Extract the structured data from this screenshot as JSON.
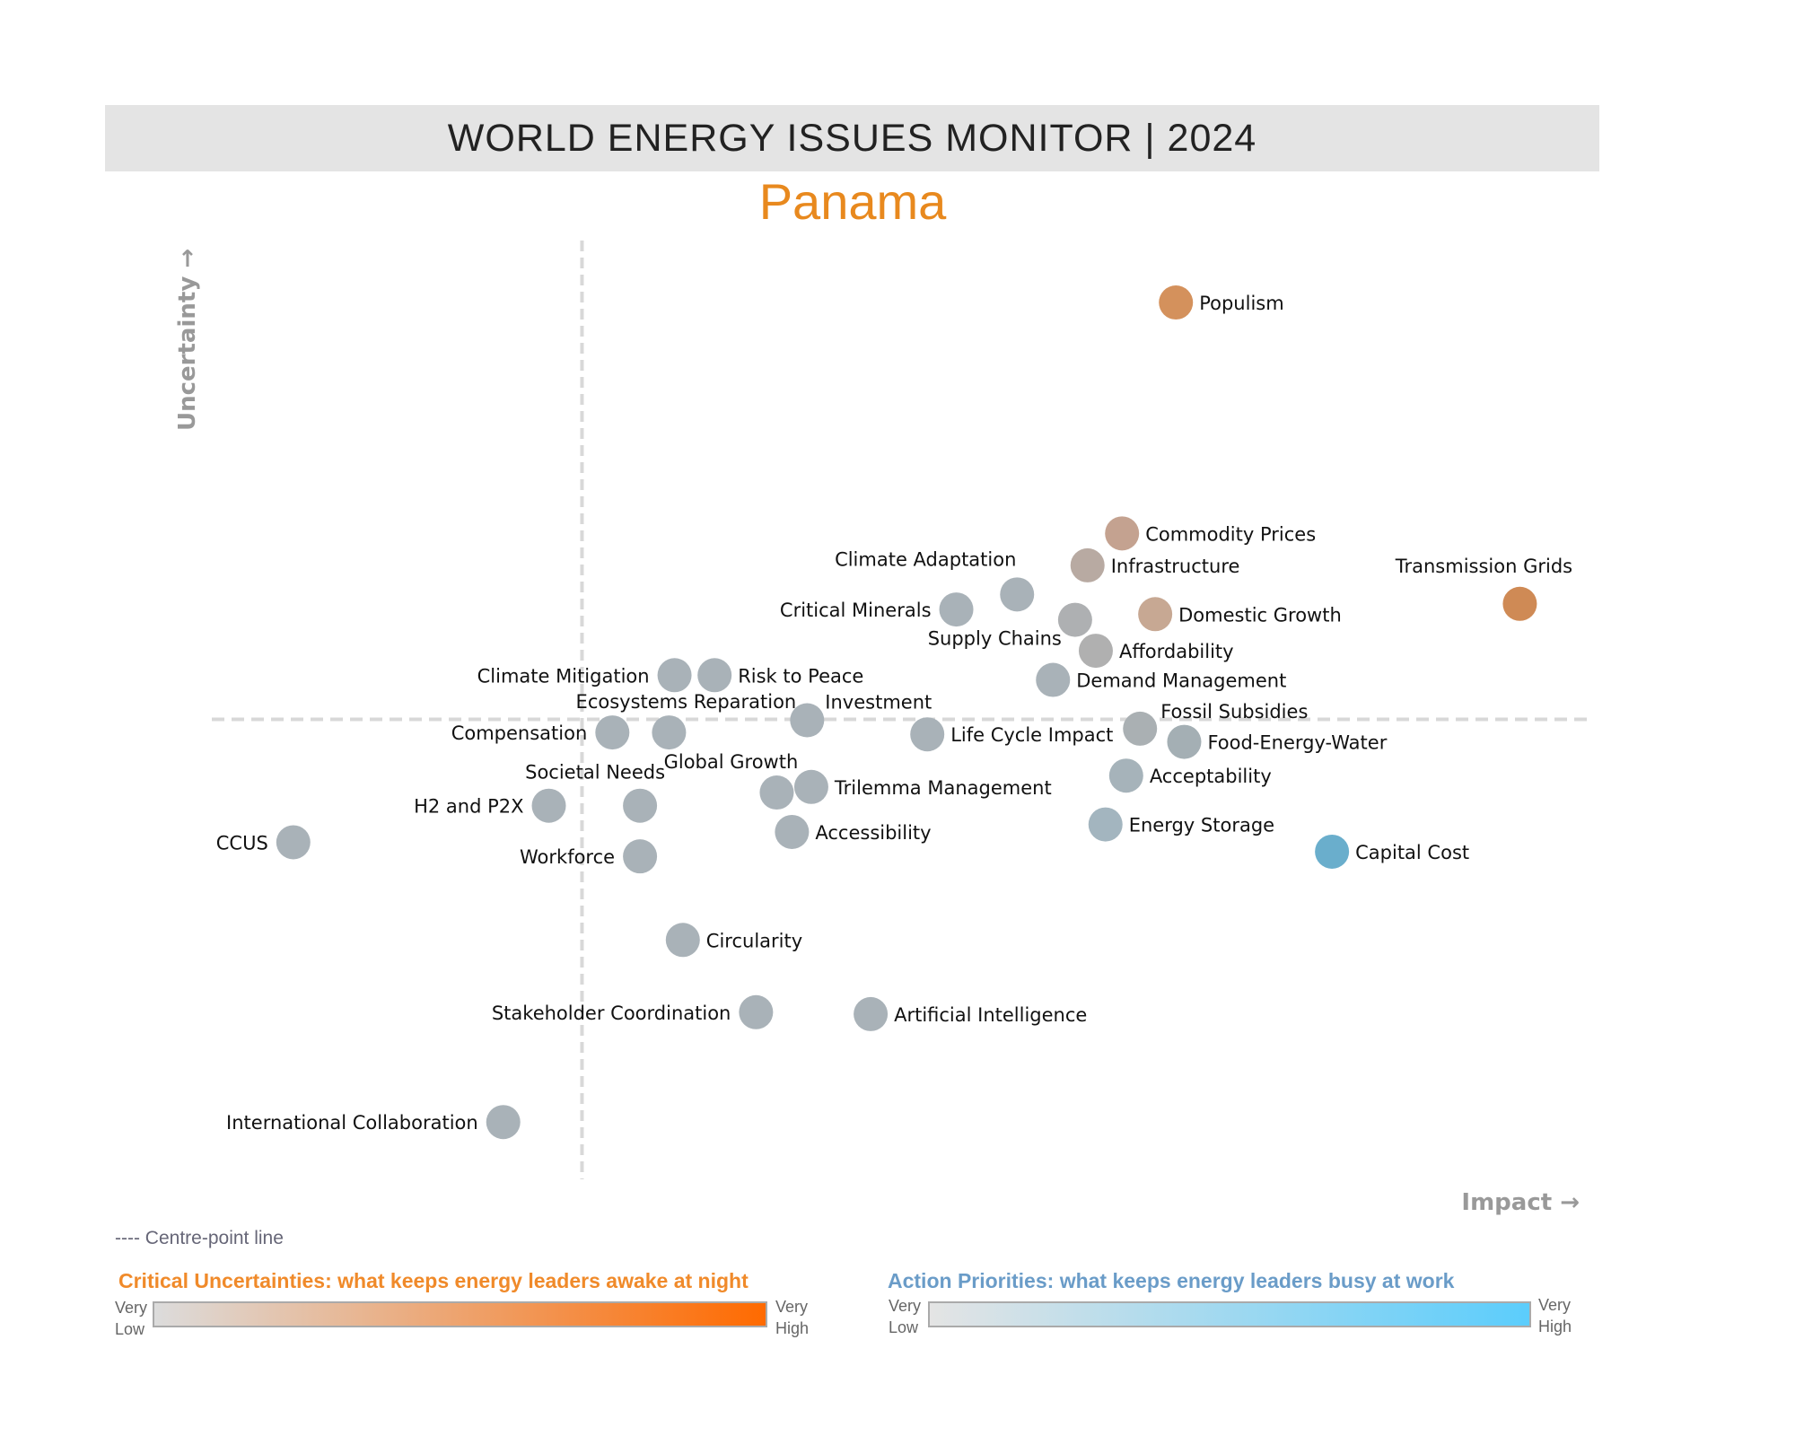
{
  "header": {
    "title": "WORLD ENERGY ISSUES MONITOR | 2024",
    "country": "Panama"
  },
  "chart_data": {
    "type": "scatter",
    "title": "WORLD ENERGY ISSUES MONITOR | 2024",
    "subtitle": "Panama",
    "xlabel": "Impact →",
    "ylabel": "Uncertainty →",
    "xlim": [
      0,
      10
    ],
    "ylim": [
      0,
      10
    ],
    "centre_point": {
      "impact": 2.68,
      "uncertainty": 4.9
    },
    "grid": false,
    "points": [
      {
        "label": "Populism",
        "impact": 6.98,
        "uncertainty": 9.34,
        "color": "#d4915c"
      },
      {
        "label": "Commodity Prices",
        "impact": 6.59,
        "uncertainty": 6.88,
        "color": "#c4a290"
      },
      {
        "label": "Infrastructure",
        "impact": 6.34,
        "uncertainty": 6.54,
        "color": "#b8aaa2"
      },
      {
        "label": "Transmission Grids",
        "impact": 9.47,
        "uncertainty": 6.13,
        "color": "#cf8a55"
      },
      {
        "label": "Domestic Growth",
        "impact": 6.83,
        "uncertainty": 6.02,
        "color": "#c7a893"
      },
      {
        "label": "Climate Adaptation",
        "impact": 5.83,
        "uncertainty": 6.23,
        "color": "#a9b2b8"
      },
      {
        "label": "Critical Minerals",
        "impact": 5.39,
        "uncertainty": 6.07,
        "color": "#a9b2b8"
      },
      {
        "label": "Supply Chains",
        "impact": 6.25,
        "uncertainty": 5.96,
        "color": "#aeb0b2"
      },
      {
        "label": "Affordability",
        "impact": 6.4,
        "uncertainty": 5.63,
        "color": "#b0b0b0"
      },
      {
        "label": "Demand Management",
        "impact": 6.09,
        "uncertainty": 5.32,
        "color": "#a9b2b8"
      },
      {
        "label": "Climate Mitigation",
        "impact": 3.35,
        "uncertainty": 5.37,
        "color": "#a9b2b8"
      },
      {
        "label": "Risk to Peace",
        "impact": 3.64,
        "uncertainty": 5.37,
        "color": "#a9b2b8"
      },
      {
        "label": "Ecosystems Reparation",
        "impact": 3.31,
        "uncertainty": 4.76,
        "color": "#a9b2b8"
      },
      {
        "label": "Investment",
        "impact": 4.31,
        "uncertainty": 4.89,
        "color": "#a9b2b8"
      },
      {
        "label": "Compensation",
        "impact": 2.9,
        "uncertainty": 4.76,
        "color": "#a9b2b8"
      },
      {
        "label": "Life Cycle Impact",
        "impact": 5.18,
        "uncertainty": 4.74,
        "color": "#a9b2b8"
      },
      {
        "label": "Fossil Subsidies",
        "impact": 6.72,
        "uncertainty": 4.8,
        "color": "#aab0b3"
      },
      {
        "label": "Food-Energy-Water",
        "impact": 7.04,
        "uncertainty": 4.66,
        "color": "#a4afb4"
      },
      {
        "label": "Acceptability",
        "impact": 6.62,
        "uncertainty": 4.3,
        "color": "#a6b3ba"
      },
      {
        "label": "Global Growth",
        "impact": 4.09,
        "uncertainty": 4.12,
        "color": "#a9b2b8"
      },
      {
        "label": "Trilemma Management",
        "impact": 4.34,
        "uncertainty": 4.18,
        "color": "#a9b2b8"
      },
      {
        "label": "Societal Needs",
        "impact": 3.1,
        "uncertainty": 3.98,
        "color": "#a9b2b8"
      },
      {
        "label": "H2 and P2X",
        "impact": 2.44,
        "uncertainty": 3.98,
        "color": "#a9b2b8"
      },
      {
        "label": "CCUS",
        "impact": 0.59,
        "uncertainty": 3.59,
        "color": "#a9b2b8"
      },
      {
        "label": "Accessibility",
        "impact": 4.2,
        "uncertainty": 3.7,
        "color": "#a9b2b8"
      },
      {
        "label": "Energy Storage",
        "impact": 6.47,
        "uncertainty": 3.78,
        "color": "#a3b5bf"
      },
      {
        "label": "Capital Cost",
        "impact": 8.11,
        "uncertainty": 3.49,
        "color": "#6aaecc"
      },
      {
        "label": "Workforce",
        "impact": 3.1,
        "uncertainty": 3.44,
        "color": "#a9b2b8"
      },
      {
        "label": "Circularity",
        "impact": 3.41,
        "uncertainty": 2.55,
        "color": "#a9b2b8"
      },
      {
        "label": "Stakeholder Coordination",
        "impact": 3.94,
        "uncertainty": 1.78,
        "color": "#a9b2b8"
      },
      {
        "label": "Artificial Intelligence",
        "impact": 4.77,
        "uncertainty": 1.76,
        "color": "#a9b2b8"
      },
      {
        "label": "International Collaboration",
        "impact": 2.11,
        "uncertainty": 0.61,
        "color": "#a9b2b8"
      }
    ]
  },
  "legend": {
    "centre_line": "---- Centre-point line",
    "uncertainties": {
      "title": "Critical Uncertainties: what keeps energy leaders awake at night",
      "low": "Very Low",
      "high": "Very High",
      "color_low": "#dcdcdc",
      "color_high": "#ff6a00",
      "title_color": "#f08a2a"
    },
    "priorities": {
      "title": "Action Priorities: what keeps energy leaders busy at work",
      "low": "Very Low",
      "high": "Very High",
      "color_low": "#e4e4e4",
      "color_high": "#5bcdfc",
      "title_color": "#6a9cc8"
    }
  }
}
